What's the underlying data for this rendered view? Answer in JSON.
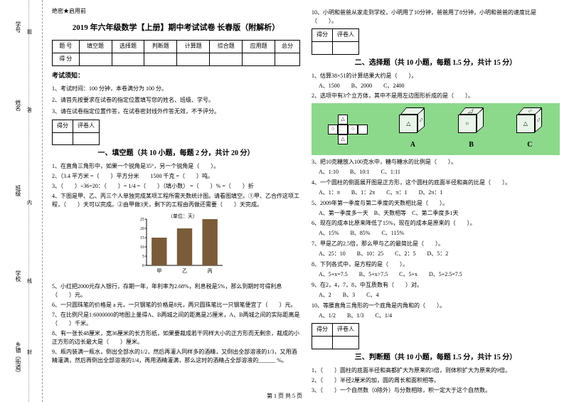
{
  "secret": "绝密★启用前",
  "title": "2019 年六年级数学【上册】期中考试试卷 长春版（附解析）",
  "score_headers": [
    "题 号",
    "填空题",
    "选择题",
    "判断题",
    "计算题",
    "综合题",
    "应用题",
    "总分"
  ],
  "score_row_label": "得 分",
  "notice_title": "考试须知：",
  "notices": [
    "1、考试时间：100 分钟，本卷满分为 100 分。",
    "2、请首先按要求在试卷的指定位置填写您的姓名、班级、学号。",
    "3、请在试卷指定位置作答，在试卷密封线外作答无效，不予评分。"
  ],
  "scorer_labels": [
    "得分",
    "评卷人"
  ],
  "section1_title": "一、填空题（共 10 小题，每题 2 分，共计 20 分）",
  "section2_title": "二、选择题（共 10 小题，每题 1.5 分，共计 15 分）",
  "section3_title": "三、判断题（共 10 小题，每题 1.5 分，共计 15 分）",
  "fill_q": [
    "1、在直角三角形中，如果一个锐角是35°，另一个锐角是（　　）。",
    "2、（3.4 平方米 =（　　）平方分米　　1500 千克 =（　　）吨。",
    "3、（　　）÷36=20：（　　）= 1/4 =（　　）（填小数） =（　　）% =（　　）折",
    "4、下图是甲、乙、丙三个人单独完成某项工程所需天数统计图。请看图填空。①甲、乙合作这项工程，（　　）天可以完成。②由甲做3天，剩下的工程由丙做还需要（　　）天完成。",
    "5、小红把2000元存入银行，存期一年，年利率为2.68%，利息税是5%，那么到期时可得利息（　　）元。",
    "6、一只圆珠笔的价格是 a 元，一只钢笔的价格是8元，两只圆珠笔比一只钢笔便宜了（　　）元。",
    "7、在比例尺是1:6000000的地图上量得A、B两城之间的距离是25厘米，A、B两城之间的实际距离是（　　）千米。",
    "8、有一张长48厘米，宽36厘米的长方形纸，如果要裁成若干同样大小的正方形而无剩余，裁成的小正方形的边长最大是（　　）厘米。",
    "9、瓶内装满一瓶水，倒出全部水的1/2，然后再灌入同样多的酒精，又倒出全部溶液的1/3，又用酒精灌满，然后再倒出全部溶液的1/4，再用酒精灌满，那么这时的酒精占全部溶液的______ %。"
  ],
  "q10": "10、小明和爸爸从家走到学校，小明用了10分钟，爸爸用了8分钟，小明和爸爸的速度比是（　　）。",
  "chart": {
    "ylabel": "（单位：天）",
    "ymax": 25,
    "ytick": 5,
    "bars": [
      {
        "label": "甲",
        "v": 15
      },
      {
        "label": "乙",
        "v": 20
      },
      {
        "label": "丙",
        "v": 25
      }
    ],
    "bar_color": "#7a5c3a"
  },
  "choice_q": [
    {
      "q": "1、估算38×51的计算结果大约是（　　）。",
      "opts": "A、1500　　B、2000　　C、2400"
    },
    {
      "q": "2、选项中有3个立方体，其中不是用左边图形折成的是（　　）。"
    },
    {
      "q": "3、把10克糖放入100克水中，糖与糖水的比例是（　　）。",
      "opts": "A、1:10　　B、10:1　　C、1:11"
    },
    {
      "q": "4、一个圆柱的侧面展开图是正方形，这个圆柱的底面半径和高的比是（　　）。",
      "opts": "A、1：π　　B、1：2π　　C、π：1　　D、2π：1"
    },
    {
      "q": "5、2009年第一季度与第二季度的天数相比是（　　）。",
      "opts": "A、第一季度多一天　B、天数相等　C、第二季度多1天"
    },
    {
      "q": "6、现在的成本比原来降低了15%，现在的成本是原来的（　　）。",
      "opts": "A、15%　　B、85%　　C、115%"
    },
    {
      "q": "7、甲是乙的2.5倍，那么甲与乙的最简比是（　　）。",
      "opts": "A、25：10　　B、10：25　　C、2：5　　D、5：2"
    },
    {
      "q": "8、下列各式中，是方程的是（　　）。",
      "opts": "A、5+x=7.5　　B、5+x>7.5　　C、5+x　　D、5+2.5=7.5"
    },
    {
      "q": "9、在2，4，7，8，中互质数有（　　）对。",
      "opts": "A、2　　B、3　　C、4"
    },
    {
      "q": "10、等腰直角三角形的一个底角是内角和的（　　）。",
      "opts": "A、1/2　　B、1/3　　C、1/4"
    }
  ],
  "cube_labels": [
    "A",
    "B",
    "C"
  ],
  "judge_q": [
    "1、（　　）圆柱的底面半径和高都扩大为原来的3倍，则体积扩大为原来的9倍。",
    "2、（　　）半径2厘米的加，圆的周长和面积相等。",
    "3、（　　）一个自然数（0除外）与分数相除，积一定大于这个自然数。"
  ],
  "binding": {
    "labels": [
      "学号",
      "姓名",
      "班级",
      "学校",
      "乡镇（街道）"
    ],
    "chars": [
      "题",
      "答",
      "内",
      "线",
      "封"
    ]
  },
  "footer": "第 1 页 共 5 页"
}
